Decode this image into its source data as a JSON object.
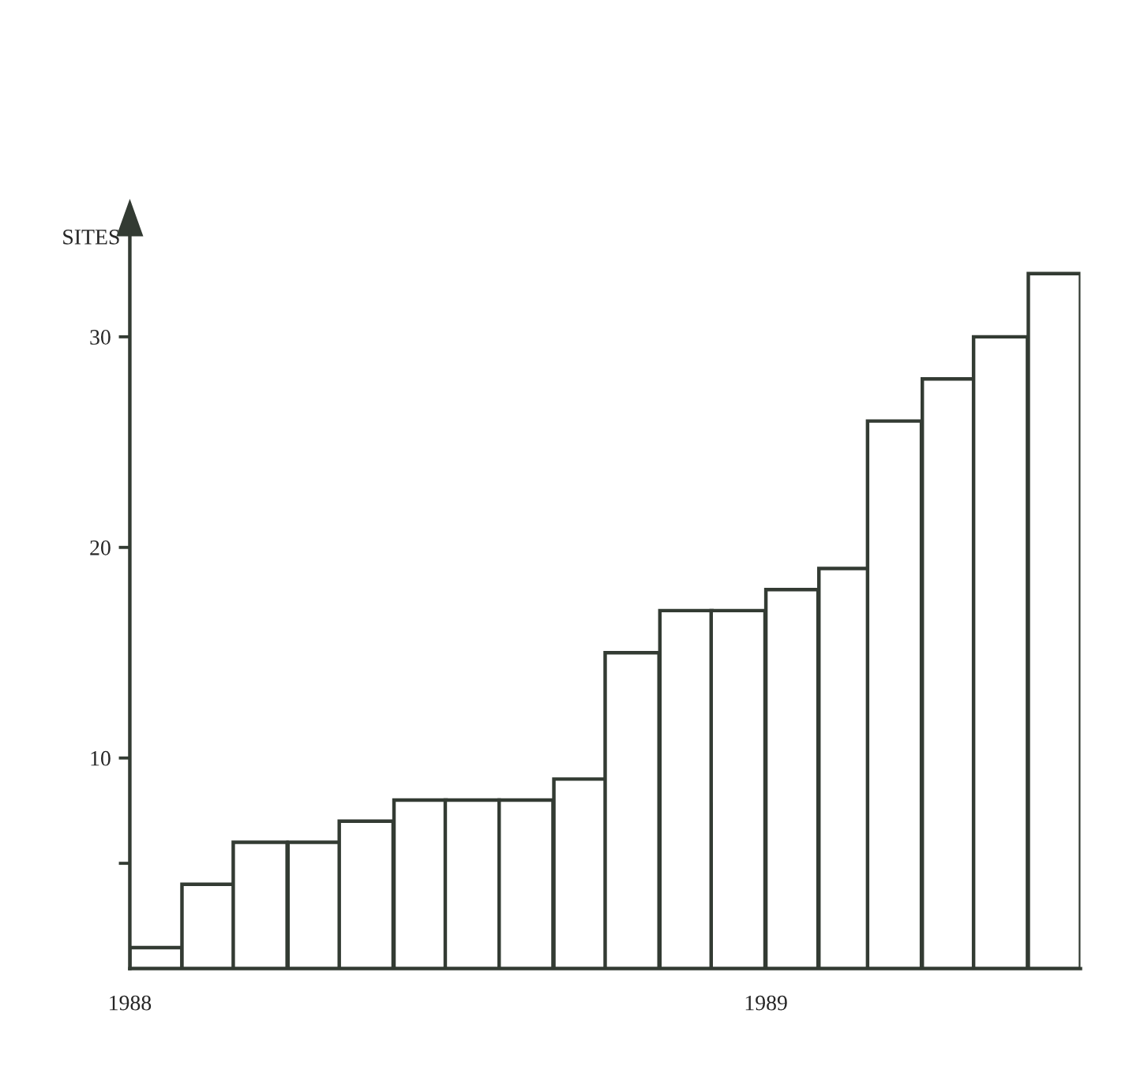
{
  "chart_data": {
    "type": "bar",
    "ylabel": "SITES",
    "x": [
      "1988-01-16",
      "1988-02-15",
      "1988-03-16",
      "1988-04-16",
      "1988-05-16",
      "1988-06-16",
      "1988-07-16",
      "1988-08-16",
      "1988-09-16",
      "1988-10-16",
      "1988-11-16",
      "1988-12-16",
      "1989-01-16",
      "1989-02-15",
      "1989-03-16",
      "1989-04-16",
      "1989-05-16",
      "1989-06-16"
    ],
    "values": [
      1,
      4,
      6,
      6,
      7,
      8,
      8,
      8,
      9,
      15,
      17,
      17,
      18,
      19,
      26,
      28,
      30,
      33
    ],
    "color": "#ffffff",
    "xlim": [
      "1988-01",
      "1989-07"
    ],
    "xticks": [
      {
        "value": "1988-01",
        "label": "1988"
      },
      {
        "value": "1989-01",
        "label": "1989"
      }
    ],
    "ylim": [
      0,
      35
    ],
    "yticks": [
      {
        "value": 5,
        "label": null
      },
      10,
      20,
      30
    ],
    "grid": false,
    "legend": false
  }
}
